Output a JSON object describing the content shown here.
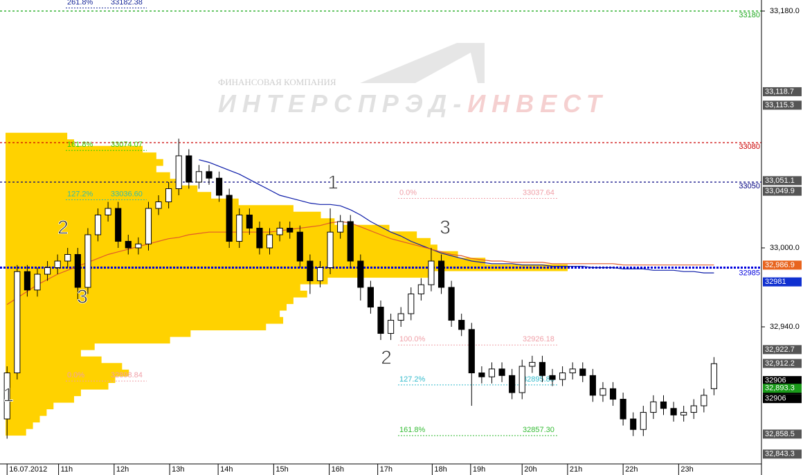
{
  "chart_data": {
    "type": "candlestick",
    "watermark": {
      "company": "ФИНАНСОВАЯ КОМПАНИЯ",
      "name_gray": "ИНТЕРСПРЭД-",
      "name_pink": "ИНВЕСТ"
    },
    "ylim": [
      32827.4,
      33188.4
    ],
    "yticks": [
      {
        "value": 33180,
        "label": "33,180.0"
      },
      {
        "value": 33000,
        "label": "33,000.0"
      },
      {
        "value": 32940,
        "label": "32,940.0"
      }
    ],
    "xlim": [
      -0.7,
      74.7
    ],
    "xticks": [
      {
        "value": 0,
        "label": "16.07.2012"
      },
      {
        "value": 5.1,
        "label": "11h"
      },
      {
        "value": 10.6,
        "label": "12h"
      },
      {
        "value": 16.1,
        "label": "13h"
      },
      {
        "value": 20.9,
        "label": "14h"
      },
      {
        "value": 26.4,
        "label": "15h"
      },
      {
        "value": 31.9,
        "label": "16h"
      },
      {
        "value": 36.7,
        "label": "17h"
      },
      {
        "value": 42.1,
        "label": "18h"
      },
      {
        "value": 45.9,
        "label": "19h"
      },
      {
        "value": 51.0,
        "label": "20h"
      },
      {
        "value": 55.5,
        "label": "21h"
      },
      {
        "value": 61.0,
        "label": "22h"
      },
      {
        "value": 66.5,
        "label": "23h"
      }
    ],
    "up_color": "#ffffff",
    "down_color": "#000000",
    "open": [
      32870,
      32905,
      32982,
      32968,
      32980,
      32985,
      32990,
      32995,
      32970,
      33010,
      33025,
      33030,
      33005,
      33000,
      33003,
      33030,
      33035,
      33045,
      33070,
      33050,
      33058,
      33053,
      33040,
      33005,
      33025,
      33015,
      33000,
      33010,
      33015,
      33012,
      32990,
      32975,
      32985,
      33012,
      33020,
      32990,
      32970,
      32955,
      32935,
      32945,
      32950,
      32965,
      32972,
      32990,
      32970,
      32945,
      32938,
      32905,
      32902,
      32908,
      32903,
      32890,
      32910,
      32913,
      32903,
      32900,
      32905,
      32908,
      32903,
      32888,
      32893,
      32885,
      32870,
      32862,
      32875,
      32883,
      32878,
      32873,
      32875,
      32880,
      32893
    ],
    "high": [
      32910,
      32987,
      32987,
      32985,
      32990,
      32995,
      33000,
      33000,
      33015,
      33030,
      33035,
      33035,
      33010,
      33008,
      33035,
      33040,
      33050,
      33083,
      33075,
      33063,
      33063,
      33058,
      33045,
      33030,
      33030,
      33020,
      33015,
      33020,
      33020,
      33017,
      32995,
      32990,
      33030,
      33025,
      33025,
      32995,
      32975,
      32960,
      32950,
      32955,
      32970,
      32977,
      33000,
      32995,
      32975,
      32950,
      32943,
      32910,
      32913,
      32913,
      32908,
      32915,
      32918,
      32918,
      32908,
      32910,
      32913,
      32913,
      32908,
      32898,
      32898,
      32890,
      32875,
      32880,
      32888,
      32888,
      32883,
      32880,
      32885,
      32893,
      32917
    ],
    "low": [
      32855,
      32900,
      32963,
      32963,
      32975,
      32980,
      32985,
      32960,
      32965,
      33005,
      33020,
      33000,
      32995,
      32995,
      32998,
      33025,
      33030,
      33040,
      33045,
      33045,
      33048,
      33035,
      33000,
      33000,
      33010,
      32995,
      32995,
      33005,
      33007,
      32985,
      32965,
      32970,
      32980,
      33007,
      32985,
      32960,
      32950,
      32930,
      32930,
      32940,
      32945,
      32960,
      32967,
      32965,
      32940,
      32933,
      32880,
      32897,
      32897,
      32898,
      32885,
      32885,
      32905,
      32898,
      32895,
      32895,
      32900,
      32898,
      32883,
      32883,
      32880,
      32865,
      32857,
      32857,
      32870,
      32873,
      32868,
      32868,
      32870,
      32875,
      32888
    ],
    "close": [
      32905,
      32982,
      32968,
      32980,
      32985,
      32990,
      32995,
      32970,
      33010,
      33025,
      33030,
      33005,
      33000,
      33003,
      33030,
      33035,
      33045,
      33070,
      33050,
      33058,
      33053,
      33040,
      33005,
      33025,
      33015,
      33000,
      33010,
      33015,
      33012,
      32990,
      32975,
      32985,
      33012,
      33020,
      32990,
      32970,
      32955,
      32935,
      32945,
      32950,
      32965,
      32972,
      32990,
      32970,
      32945,
      32938,
      32905,
      32902,
      32908,
      32903,
      32890,
      32910,
      32913,
      32903,
      32900,
      32905,
      32908,
      32903,
      32888,
      32893,
      32885,
      32870,
      32862,
      32875,
      32883,
      32878,
      32873,
      32875,
      32880,
      32888,
      32912
    ],
    "series": [
      {
        "color": "#0a1aa8",
        "values": [
          null,
          null,
          null,
          null,
          null,
          null,
          null,
          null,
          null,
          null,
          null,
          null,
          null,
          null,
          null,
          null,
          null,
          null,
          null,
          33067,
          33065,
          33062,
          33059,
          33056,
          33052,
          33048,
          33044,
          33040,
          33038,
          33036,
          33034,
          33033,
          33033,
          33032,
          33029,
          33025,
          33020,
          33016,
          33012,
          33009,
          33005,
          33002,
          32999,
          32996,
          32994,
          32992,
          32990,
          32989,
          32988,
          32988,
          32988,
          32987,
          32987,
          32987,
          32986,
          32986,
          32986,
          32986,
          32985,
          32985,
          32985,
          32984,
          32984,
          32984,
          32983,
          32983,
          32983,
          32982,
          32982,
          32981,
          32981
        ]
      },
      {
        "color": "#e05a2a",
        "values": [
          32957,
          32962,
          32967,
          32972,
          32976,
          32980,
          32983,
          32986,
          32989,
          32992,
          32995,
          32997,
          32999,
          33001,
          33003,
          33005,
          33007,
          33008,
          33010,
          33011,
          33012,
          33012,
          33012,
          33012,
          33012,
          33012,
          33012,
          33013,
          33014,
          33015,
          33016,
          33017,
          33019,
          33020,
          33019,
          33016,
          33013,
          33010,
          33007,
          33005,
          33003,
          33001,
          32999,
          32997,
          32995,
          32994,
          32992,
          32991,
          32990,
          32990,
          32989,
          32989,
          32989,
          32989,
          32988,
          32988,
          32988,
          32988,
          32988,
          32988,
          32988,
          32987,
          32987,
          32987,
          32987,
          32987,
          32987,
          32987,
          32987,
          32987,
          32987
        ]
      }
    ],
    "volume_profile": {
      "color": "#ffd200",
      "price_levels": [
        33085,
        33080,
        33075,
        33070,
        33065,
        33060,
        33055,
        33050,
        33045,
        33040,
        33035,
        33030,
        33025,
        33020,
        33015,
        33010,
        33005,
        33000,
        32995,
        32990,
        32985,
        32980,
        32975,
        32970,
        32965,
        32960,
        32955,
        32950,
        32945,
        32940,
        32935,
        32930,
        32925,
        32920,
        32915,
        32910,
        32905,
        32900,
        32895,
        32890,
        32885,
        32880,
        32875,
        32870,
        32865,
        32860
      ],
      "volumes": [
        90,
        100,
        200,
        220,
        230,
        220,
        240,
        250,
        280,
        300,
        340,
        420,
        460,
        480,
        560,
        600,
        620,
        630,
        660,
        700,
        820,
        620,
        470,
        430,
        440,
        420,
        410,
        400,
        405,
        380,
        270,
        240,
        130,
        110,
        140,
        170,
        180,
        160,
        150,
        110,
        100,
        70,
        60,
        50,
        40,
        30
      ]
    },
    "levels": [
      {
        "value": 33180,
        "label": "33180",
        "color": "#22aa22"
      },
      {
        "value": 33080,
        "label": "33080",
        "color": "#cc0000"
      },
      {
        "value": 33050,
        "label": "33050",
        "color": "#000080"
      },
      {
        "value": 32985,
        "label": "32985",
        "color": "#0000dd"
      }
    ],
    "fib_left": [
      {
        "pct": "261.8%",
        "value": 33182.38,
        "color": "#1a2a9a"
      },
      {
        "pct": "161.8%",
        "value": 33074.07,
        "color": "#33cc00"
      },
      {
        "pct": "127.2%",
        "value": 33036.6,
        "label": "33036.60",
        "color": "#33bbaa"
      },
      {
        "pct": "0.0%",
        "value": 32898.84,
        "color": "#f0a0a8"
      }
    ],
    "fib_right": [
      {
        "pct": "0.0%",
        "value": 33037.64,
        "color": "#f0a0a8"
      },
      {
        "pct": "100.0%",
        "value": 32926.18,
        "color": "#f0a0a8"
      },
      {
        "pct": "127.2%",
        "value": 32895.86,
        "color": "#33bbcc"
      },
      {
        "pct": "161.8%",
        "value": 32857.3,
        "label": "32857.30",
        "color": "#33bb33"
      }
    ],
    "price_tags": [
      {
        "value": 33118.7,
        "label": "33,118.7",
        "color": "#555555"
      },
      {
        "value": 33115.3,
        "label": "33,115.3",
        "color": "#555555"
      },
      {
        "value": 33051.1,
        "label": "33,051.1",
        "color": "#555555"
      },
      {
        "value": 33049.9,
        "label": "33,049.9",
        "color": "#555555"
      },
      {
        "value": 32986.9,
        "label": "32,986.9",
        "color": "#e8641e"
      },
      {
        "value": 32981,
        "color": "#1030d0"
      },
      {
        "value": 32922.7,
        "label": "32,922.7",
        "color": "#555555"
      },
      {
        "value": 32912.2,
        "label": "32,912.2",
        "color": "#555555"
      },
      {
        "value": 32906,
        "color": "#000000"
      },
      {
        "value": 32906,
        "color": "#000000"
      },
      {
        "value": 32906,
        "color": "#000000"
      },
      {
        "value": 32893.3,
        "label": "32,893.3",
        "color": "#1a9a1a"
      },
      {
        "value": 32858.5,
        "label": "32,858.5",
        "color": "#555555"
      },
      {
        "value": 32843.3,
        "label": "32,843.3",
        "color": "#555555"
      }
    ],
    "waves": [
      "1",
      "2",
      "3",
      "1",
      "3",
      "2"
    ]
  }
}
